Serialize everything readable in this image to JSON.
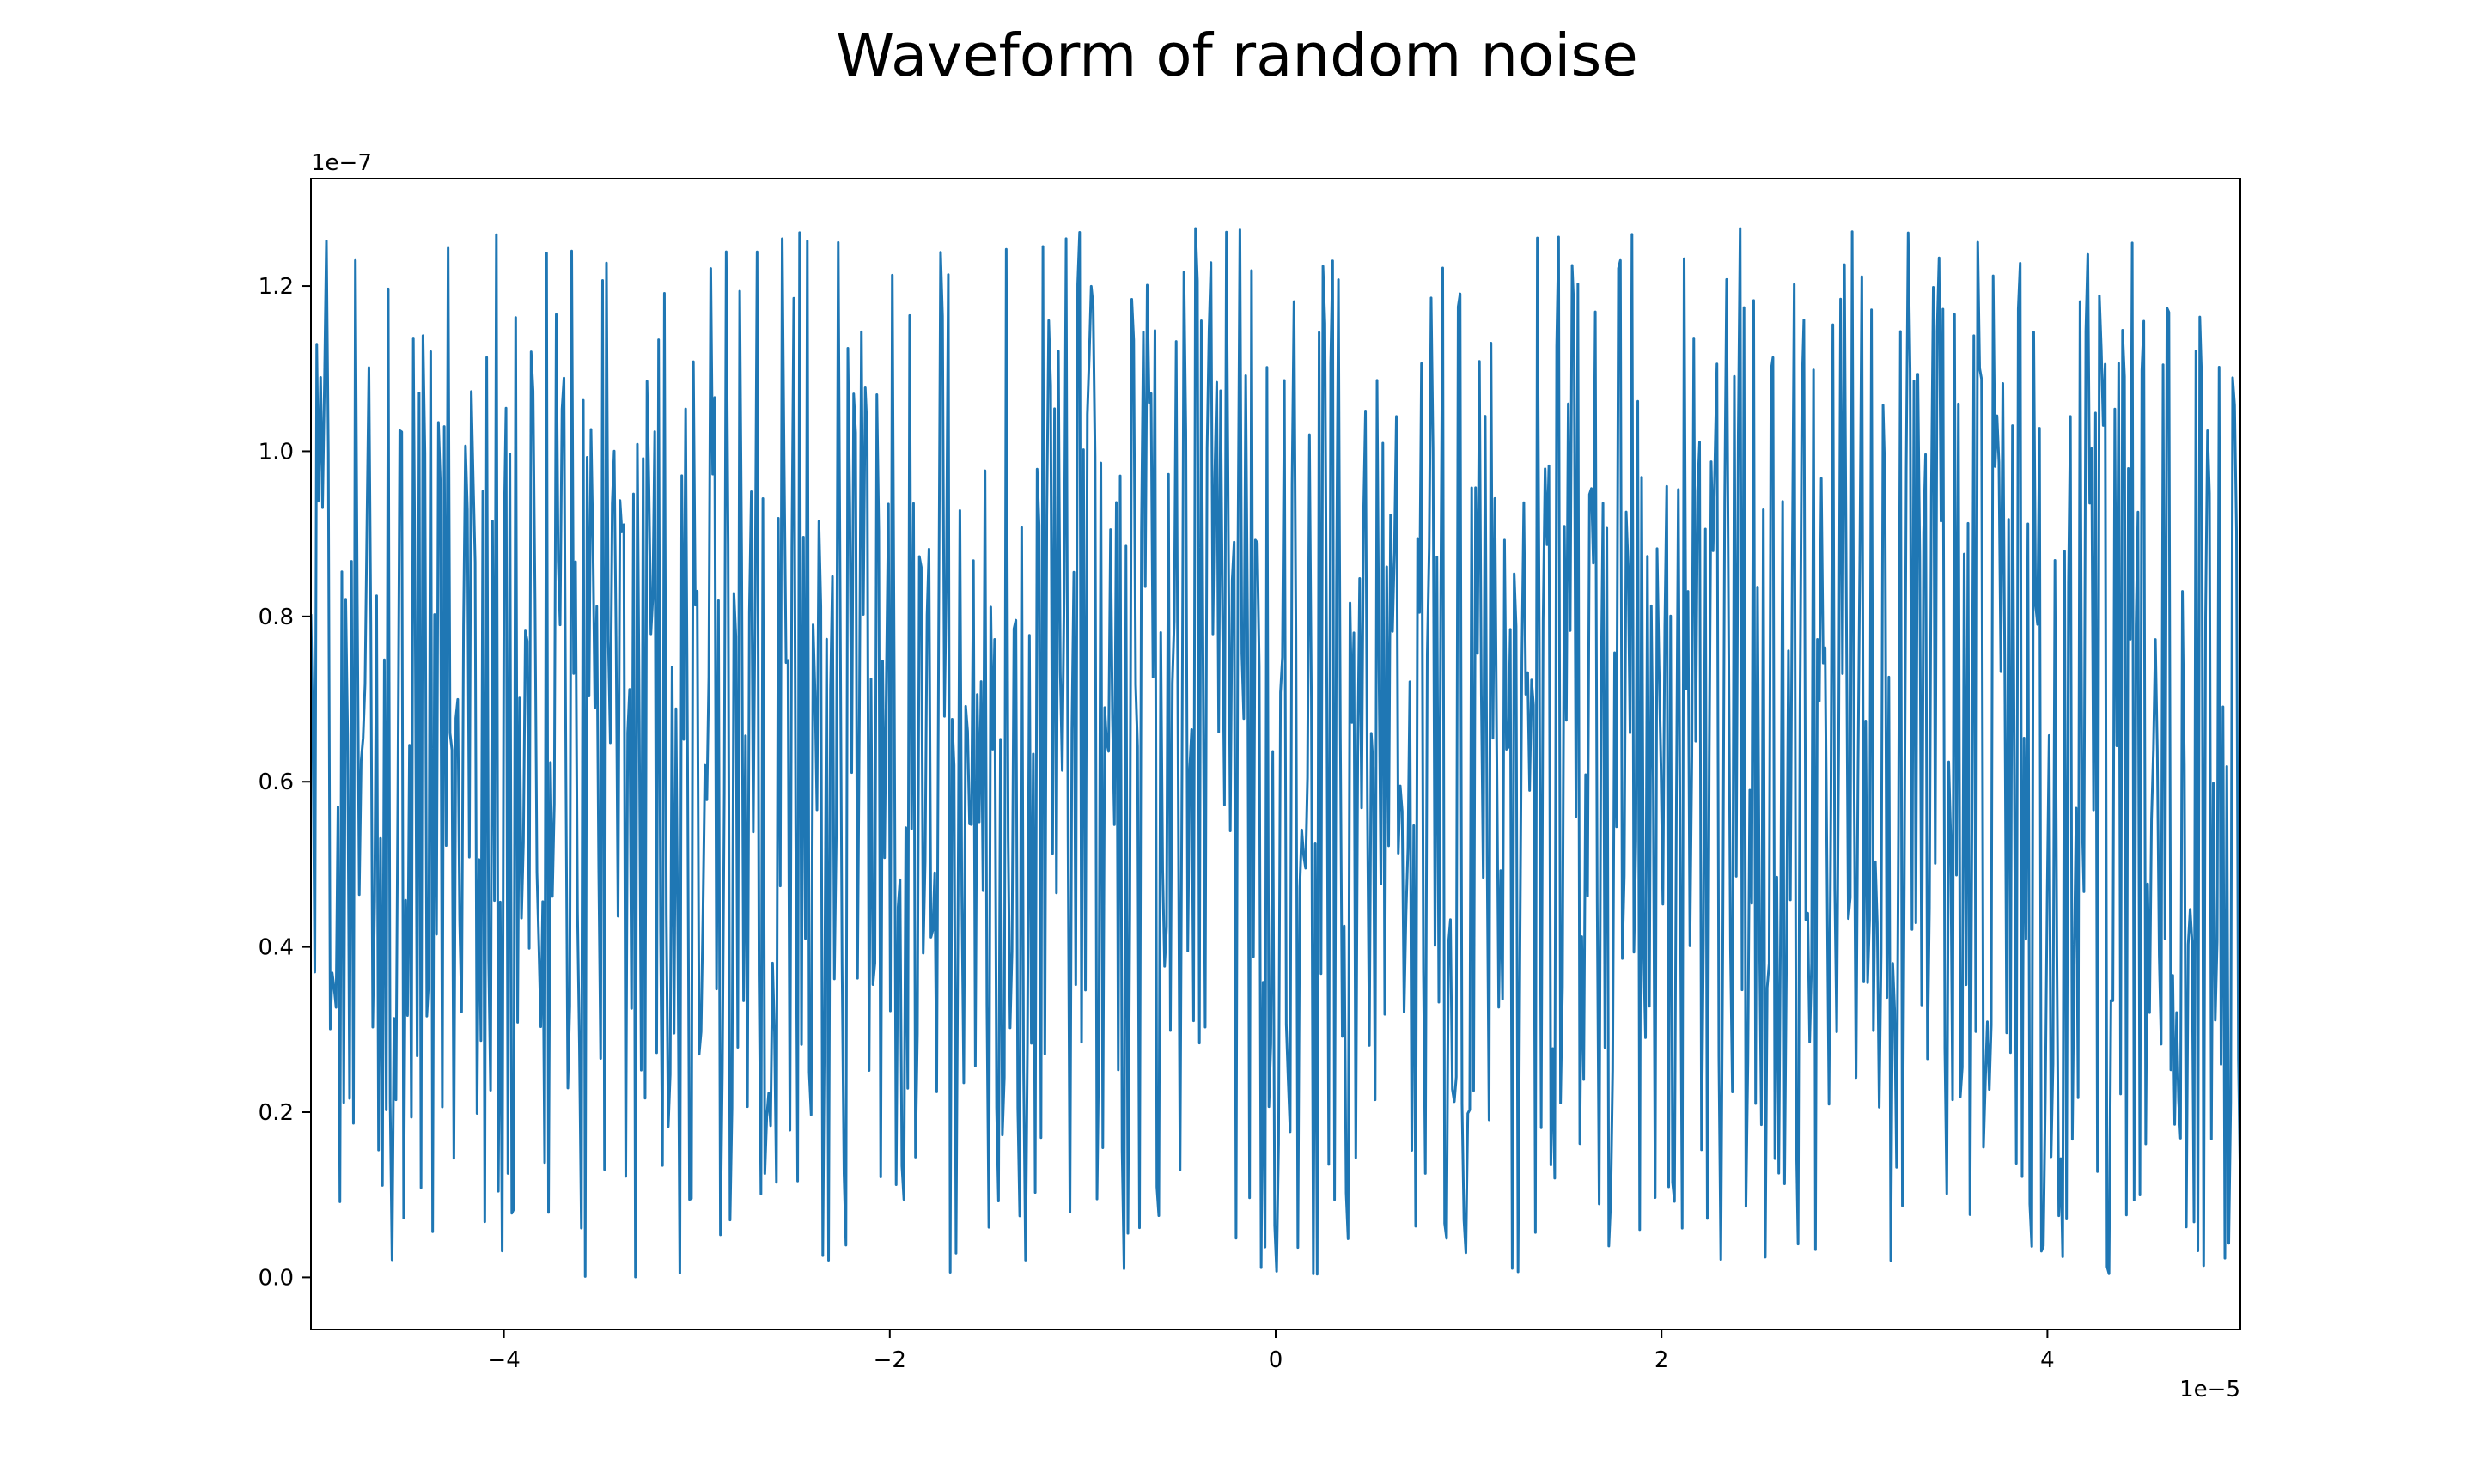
{
  "chart_data": {
    "type": "line",
    "title": "Waveform of random noise",
    "xlabel": "",
    "ylabel": "",
    "x_offset_label": "1e−5",
    "y_offset_label": "1e−7",
    "x_scale": 1e-05,
    "y_scale": 1e-07,
    "xlim": [
      -5e-05,
      5e-05
    ],
    "ylim": [
      -6.3e-09,
      1.33e-07
    ],
    "x_ticks": [
      -4e-05,
      -2e-05,
      0,
      2e-05,
      4e-05
    ],
    "x_tick_labels": [
      "−4",
      "−2",
      "0",
      "2",
      "4"
    ],
    "y_ticks": [
      0,
      2e-08,
      4e-08,
      6e-08,
      8e-08,
      1e-07,
      1.2e-07
    ],
    "y_tick_labels": [
      "0.0",
      "0.2",
      "0.4",
      "0.6",
      "0.8",
      "1.0",
      "1.2"
    ],
    "grid": false,
    "legend": "none",
    "series": [
      {
        "color": "#1f77b4",
        "sampling": {
          "start": -5e-05,
          "stop": 5e-05,
          "count": 1000
        },
        "amplitude_range": [
          0,
          1.27e-07
        ],
        "distribution": "uniform random"
      }
    ]
  }
}
